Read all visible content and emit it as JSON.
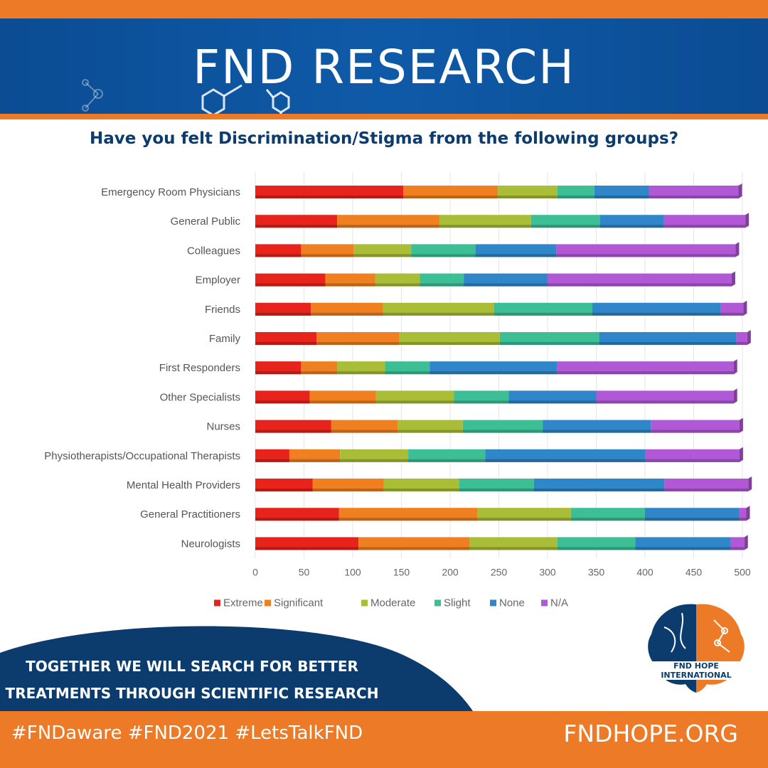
{
  "header": {
    "title": "FND RESEARCH"
  },
  "question": "Have you felt Discrimination/Stigma from the following groups?",
  "chart_data": {
    "type": "bar",
    "orientation": "horizontal",
    "stacked": true,
    "title": "",
    "xlabel": "",
    "ylabel": "",
    "xlim": [
      0,
      500
    ],
    "xticks": [
      0,
      50,
      100,
      150,
      200,
      250,
      300,
      350,
      400,
      450,
      500
    ],
    "legend_position": "bottom",
    "grid": true,
    "categories": [
      "Emergency Room Physicians",
      "General Public",
      "Colleagues",
      "Employer",
      "Friends",
      "Family",
      "First Responders",
      "Other Specialists",
      "Nurses",
      "Physiotherapists/Occupational Therapists",
      "Mental Health Providers",
      "General Practitioners",
      "Neurologists"
    ],
    "series": [
      {
        "name": "Extreme",
        "color": "#e8231b",
        "values": [
          152,
          84,
          47,
          72,
          57,
          63,
          47,
          56,
          78,
          35,
          59,
          86,
          106
        ]
      },
      {
        "name": "Significant",
        "color": "#f07f1f",
        "values": [
          97,
          105,
          54,
          51,
          74,
          85,
          37,
          68,
          68,
          52,
          73,
          142,
          114
        ]
      },
      {
        "name": "Moderate",
        "color": "#a9bd37",
        "values": [
          61,
          94,
          59,
          46,
          114,
          103,
          49,
          80,
          67,
          70,
          77,
          96,
          90
        ]
      },
      {
        "name": "Slight",
        "color": "#3cbf95",
        "values": [
          38,
          71,
          66,
          45,
          101,
          102,
          46,
          56,
          82,
          79,
          77,
          76,
          80
        ]
      },
      {
        "name": "None",
        "color": "#2f86c8",
        "values": [
          56,
          65,
          83,
          86,
          132,
          141,
          131,
          90,
          111,
          164,
          134,
          97,
          98
        ]
      },
      {
        "name": "N/A",
        "color": "#b058d6",
        "values": [
          92,
          84,
          184,
          189,
          23,
          11,
          181,
          141,
          91,
          97,
          86,
          7,
          14
        ]
      }
    ]
  },
  "footer": {
    "slogan_line1": "TOGETHER WE WILL SEARCH FOR BETTER",
    "slogan_line2": "TREATMENTS THROUGH SCIENTIFIC RESEARCH",
    "logo_text": "FND HOPE INTERNATIONAL",
    "hashtags": "#FNDaware #FND2021 #LetsTalkFND",
    "website": "FNDHOPE.ORG"
  }
}
